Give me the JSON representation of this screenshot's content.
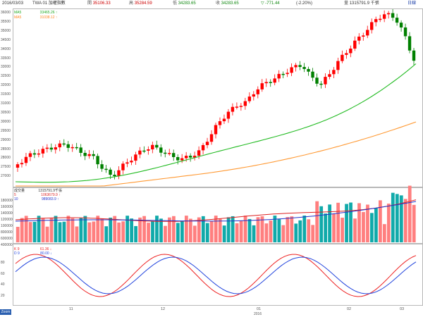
{
  "topbar": {
    "date": "2016/03/03",
    "code": "TWA 01 加權指數",
    "open_label": "開",
    "open": "35106.33",
    "high_label": "高",
    "high": "35284.59",
    "low_label": "低",
    "low": "34283.65",
    "close_label": "收",
    "close": "34283.65",
    "change_label": "▽",
    "change": "-771.44",
    "pct": "(-2.20%)",
    "volume_label": "量",
    "volume": "1315791.9 千張",
    "right_btn": "日線"
  },
  "price_legend": {
    "ma1_label": "MA5",
    "ma1_value": "33465.26 ↑",
    "ma2_label": "MA5",
    "ma2_value": "31038.12 ↑"
  },
  "volume_legend": {
    "title": "成交量",
    "v1_value": "1315791.9千張",
    "v2_label": "5",
    "v2_value": "1063679.9 ↑",
    "v3_label": "10",
    "v3_value": "989083.9 ↑"
  },
  "kd_legend": {
    "k_label": "K 9",
    "k_value": "61.36 ↓",
    "d_label": "D 9",
    "d_value": "80.00 ↓"
  },
  "price_ticks": [
    "36000",
    "35500",
    "35000",
    "34500",
    "34000",
    "33500",
    "33000",
    "32500",
    "32000",
    "31500",
    "31000",
    "30500",
    "30000",
    "29500",
    "29000",
    "28500",
    "28000",
    "27500",
    "27000"
  ],
  "volume_ticks": [
    "1800000",
    "1600000",
    "1400000",
    "1200000",
    "1000000",
    "800000",
    "600000",
    "400000"
  ],
  "kd_ticks": [
    "80",
    "60",
    "40",
    "20"
  ],
  "x_ticks": [
    "11",
    "12",
    "01",
    "02",
    "03"
  ],
  "year_label": "2016",
  "corner_button": "Zoom",
  "colors": {
    "up": "#ff0000",
    "down": "#008000",
    "ma_short": "#22bb22",
    "ma_long": "#ff9933",
    "vol_up": "#ff7f7f",
    "vol_down": "#11aaaa",
    "vol_ma5": "#dd2222",
    "vol_ma10": "#2233cc",
    "k_line": "#ee2222",
    "d_line": "#2244dd"
  }
}
